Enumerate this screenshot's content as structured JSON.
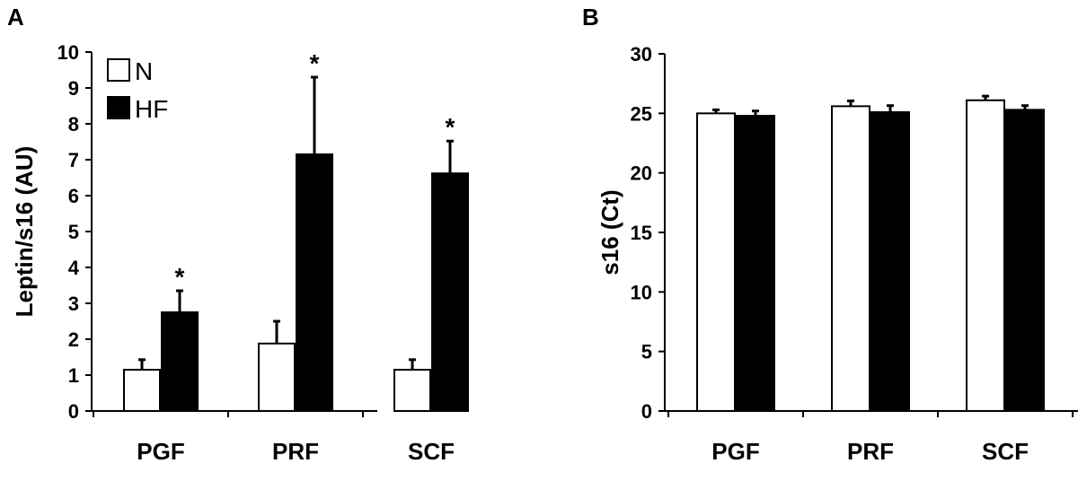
{
  "chart_data": [
    {
      "panel": "A",
      "type": "bar",
      "title": "",
      "xlabel": "",
      "ylabel": "Leptin/s16 (AU)",
      "ylim": [
        0,
        10
      ],
      "yticks": [
        "0",
        "1",
        "2",
        "3",
        "4",
        "5",
        "6",
        "7",
        "8",
        "9",
        "10"
      ],
      "categories": [
        "PGF",
        "PRF",
        "SCF"
      ],
      "legend": {
        "position": "top-left",
        "entries": [
          "N",
          "HF"
        ]
      },
      "series": [
        {
          "name": "N",
          "color": "#ffffff",
          "values": [
            1.15,
            1.88,
            1.15
          ],
          "errors": [
            0.28,
            0.62,
            0.28
          ]
        },
        {
          "name": "HF",
          "color": "#000000",
          "values": [
            2.75,
            7.15,
            6.62
          ],
          "errors": [
            0.6,
            2.15,
            0.9
          ]
        }
      ],
      "annotations": [
        {
          "category": "PGF",
          "series": "HF",
          "text": "*"
        },
        {
          "category": "PRF",
          "series": "HF",
          "text": "*"
        },
        {
          "category": "SCF",
          "series": "HF",
          "text": "*"
        }
      ]
    },
    {
      "panel": "B",
      "type": "bar",
      "title": "",
      "xlabel": "",
      "ylabel": "s16 (Ct)",
      "ylim": [
        0,
        30
      ],
      "yticks": [
        "0",
        "5",
        "10",
        "15",
        "20",
        "25",
        "30"
      ],
      "categories": [
        "PGF",
        "PRF",
        "SCF"
      ],
      "series": [
        {
          "name": "N",
          "color": "#ffffff",
          "values": [
            25.0,
            25.6,
            26.1
          ],
          "errors": [
            0.3,
            0.45,
            0.35
          ]
        },
        {
          "name": "HF",
          "color": "#000000",
          "values": [
            24.8,
            25.1,
            25.3
          ],
          "errors": [
            0.4,
            0.55,
            0.35
          ]
        }
      ],
      "annotations": []
    }
  ]
}
